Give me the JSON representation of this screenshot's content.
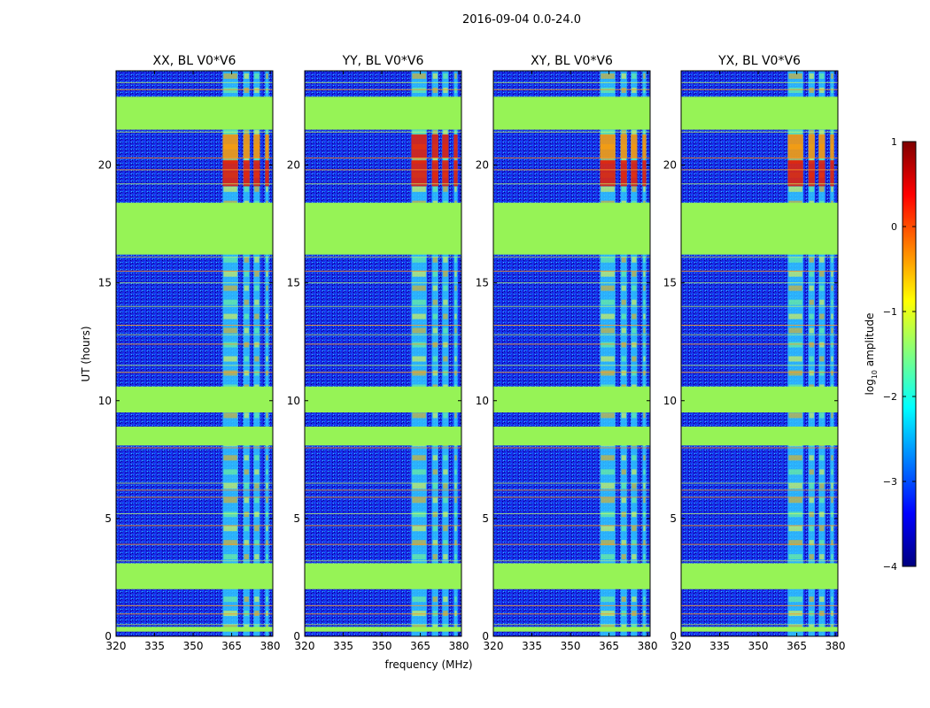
{
  "figure": {
    "suptitle": "2016-09-04 0.0-24.0",
    "ylabel": "UT (hours)",
    "xlabel": "frequency (MHz)",
    "colorbar_label_prefix": "log",
    "colorbar_label_sub": "10",
    "colorbar_label_suffix": " amplitude",
    "colorbar_ticks": [
      "1",
      "0",
      "−1",
      "−2",
      "−3",
      "−4"
    ]
  },
  "chart_data": {
    "type": "heatmap",
    "x_range_mhz": [
      320,
      381
    ],
    "y_range_hours": [
      0,
      24
    ],
    "x_tick_labels": [
      "320",
      "335",
      "350",
      "365",
      "380"
    ],
    "x_tick_values": [
      320,
      335,
      350,
      365,
      380
    ],
    "y_tick_labels": [
      "0",
      "5",
      "10",
      "15",
      "20"
    ],
    "y_tick_values": [
      0,
      5,
      10,
      15,
      20
    ],
    "color_range_log10": [
      -4,
      1
    ],
    "colormap": [
      "#00007f",
      "#0000ff",
      "#0080ff",
      "#00ffff",
      "#80ff80",
      "#ffff00",
      "#ff8000",
      "#ff0000",
      "#7f0000"
    ],
    "flagged_color": "#96f356",
    "flagged_time_bands_hours": [
      [
        0.2,
        0.4
      ],
      [
        2.0,
        3.1
      ],
      [
        8.1,
        8.9
      ],
      [
        9.5,
        10.6
      ],
      [
        16.2,
        18.4
      ],
      [
        21.5,
        22.9
      ]
    ],
    "rfi_frequency_bands_mhz": [
      [
        361.5,
        367.5
      ],
      [
        369.5,
        372
      ],
      [
        373.5,
        376
      ],
      [
        378,
        379.5
      ]
    ],
    "rfi_strong_time_bands_hours": [
      [
        19.1,
        20.2
      ],
      [
        20.3,
        21.3
      ]
    ],
    "panels": [
      {
        "title": "XX, BL V0*V6"
      },
      {
        "title": "YY, BL V0*V6"
      },
      {
        "title": "XY, BL V0*V6"
      },
      {
        "title": "YX, BL V0*V6"
      }
    ]
  }
}
